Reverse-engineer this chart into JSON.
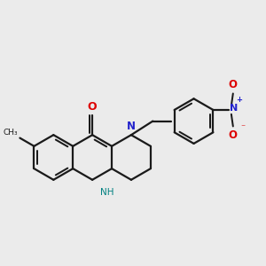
{
  "bg_color": "#ebebeb",
  "bond_color": "#1a1a1a",
  "nitrogen_color": "#2222cc",
  "oxygen_color": "#dd0000",
  "nh_color": "#008080",
  "line_width": 1.6,
  "fig_width": 3.0,
  "fig_height": 3.0,
  "dpi": 100,
  "methyl_label": "CH₃",
  "nh_label": "NH",
  "n_label": "N",
  "o_label": "O",
  "nplus_label": "N",
  "ominus_label": "O"
}
